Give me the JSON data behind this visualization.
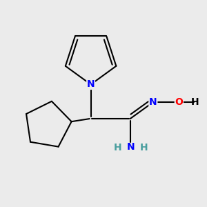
{
  "bg_color": "#ebebeb",
  "bond_color": "#000000",
  "N_color": "#0000ff",
  "O_color": "#ff0000",
  "teal_color": "#4a9f9f",
  "line_width": 1.5,
  "fig_size": [
    3.0,
    3.0
  ],
  "dpi": 100,
  "xlim": [
    0,
    10
  ],
  "ylim": [
    0,
    10
  ]
}
